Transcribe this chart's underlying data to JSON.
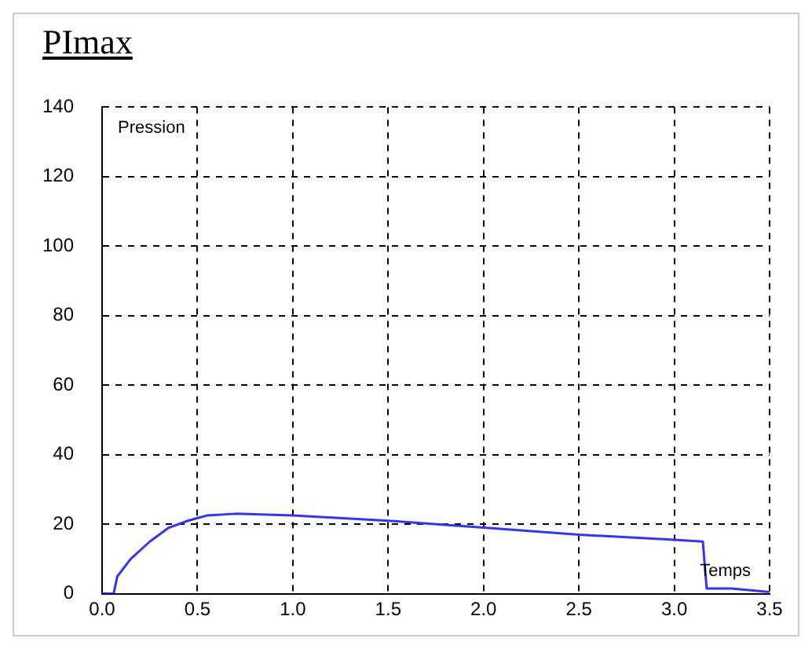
{
  "chart_data": {
    "type": "line",
    "title": "PImax",
    "ylabel": "Pression",
    "xlabel": "Temps",
    "x": [
      0,
      0.06,
      0.08,
      0.15,
      0.25,
      0.35,
      0.45,
      0.55,
      0.7,
      1.0,
      1.5,
      2.0,
      2.5,
      3.0,
      3.15,
      3.17,
      3.3,
      3.4,
      3.5
    ],
    "series": [
      {
        "color": "#3333ff",
        "values": [
          0,
          0,
          5,
          10,
          15,
          19,
          21,
          22.5,
          23,
          22.5,
          21,
          19,
          17,
          15.5,
          15,
          1.5,
          1.5,
          1,
          0.5
        ]
      }
    ],
    "xlim": [
      0,
      3.5
    ],
    "xticks": [
      {
        "value": 0,
        "label": "0.0"
      },
      {
        "value": 0.5,
        "label": "0.5"
      },
      {
        "value": 1,
        "label": "1.0"
      },
      {
        "value": 1.5,
        "label": "1.5"
      },
      {
        "value": 2,
        "label": "2.0"
      },
      {
        "value": 2.5,
        "label": "2.5"
      },
      {
        "value": 3,
        "label": "3.0"
      },
      {
        "value": 3.5,
        "label": "3.5"
      }
    ],
    "ylim": [
      0,
      140
    ],
    "yticks": [
      0,
      20,
      40,
      60,
      80,
      100,
      120,
      140
    ],
    "grid": true,
    "marker": "none",
    "line_style": "solid"
  }
}
